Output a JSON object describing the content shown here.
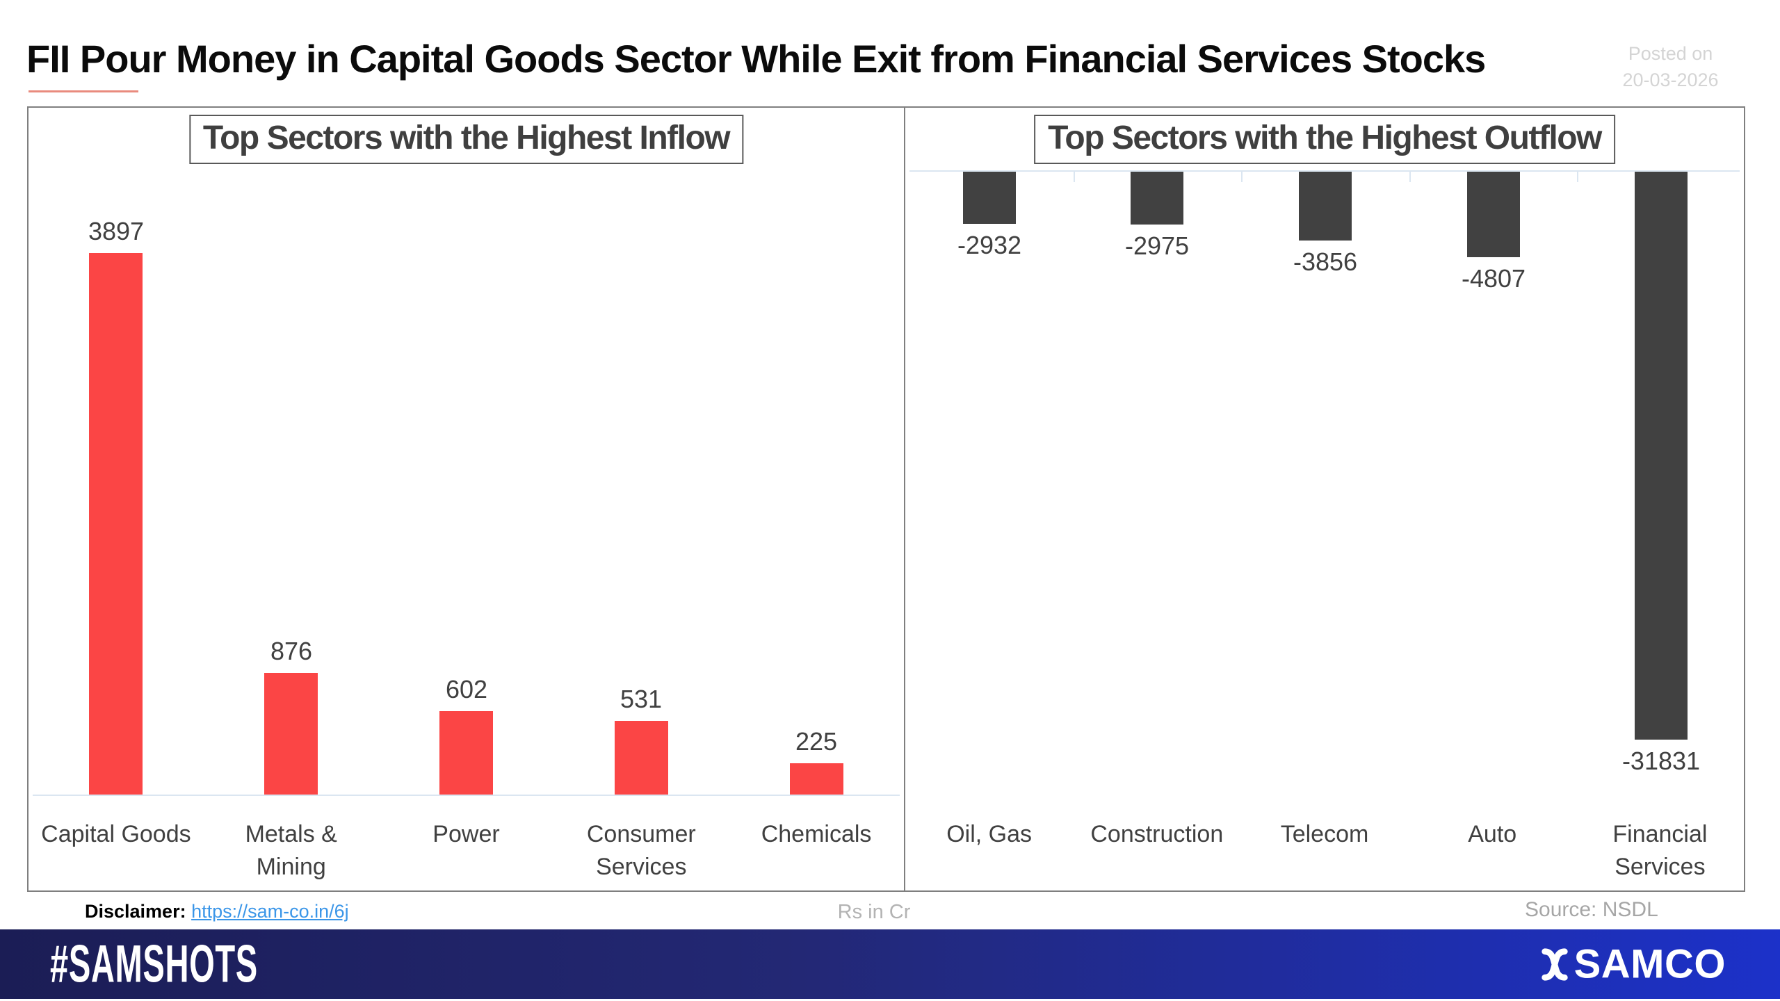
{
  "header": {
    "title": "FII Pour Money in Capital Goods Sector While Exit from Financial Services Stocks",
    "posted_on_line1": "Posted on",
    "posted_on_line2": "20-03-2026"
  },
  "annotations": {
    "disclaimer_label": "Disclaimer: ",
    "disclaimer_link": "https://sam-co.in/6j",
    "units": "Rs in Cr",
    "source": "Source: NSDL"
  },
  "footer": {
    "hashtag": "#SAMSHOTS",
    "brand": "SAMCO"
  },
  "colors": {
    "inflow_bar": "#fb4545",
    "outflow_bar": "#414141",
    "accent_underline": "#e98b7e",
    "link": "#3b96e8",
    "label_text": "#404040",
    "footer_left": "#1b1d55",
    "footer_right": "#1c31c9"
  },
  "chart_data": [
    {
      "type": "bar",
      "title": "Top Sectors with the Highest Inflow",
      "categories": [
        "Capital Goods",
        "Metals &\nMining",
        "Power",
        "Consumer\nServices",
        "Chemicals"
      ],
      "values": [
        3897,
        876,
        602,
        531,
        225
      ],
      "bar_color": "#fb4545",
      "units": "Rs in Cr",
      "data_labels": true,
      "axis": "zero-at-bottom",
      "grid": false
    },
    {
      "type": "bar",
      "title": "Top Sectors with the Highest Outflow",
      "categories": [
        "Oil, Gas",
        "Construction",
        "Telecom",
        "Auto",
        "Financial\nServices"
      ],
      "values": [
        -2932,
        -2975,
        -3856,
        -4807,
        -31831
      ],
      "bar_color": "#414141",
      "units": "Rs in Cr",
      "data_labels": true,
      "axis": "zero-at-top",
      "grid": false
    }
  ]
}
